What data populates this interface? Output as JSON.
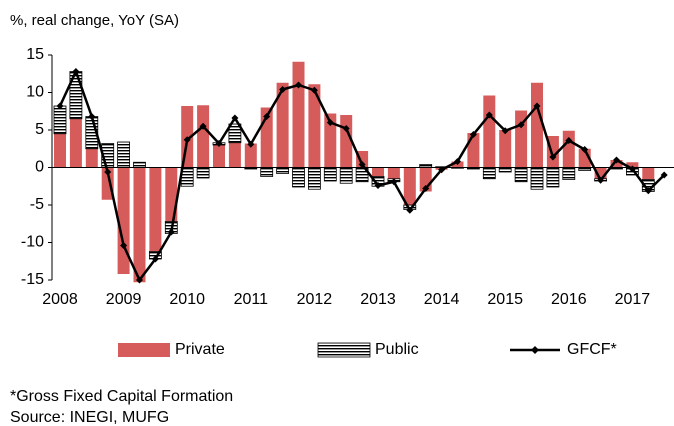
{
  "chart_data": {
    "type": "bar",
    "title": "%,  real change, YoY (SA)",
    "categories": [
      "2008",
      null,
      null,
      null,
      "2009",
      null,
      null,
      null,
      "2010",
      null,
      null,
      null,
      "2011",
      null,
      null,
      null,
      "2012",
      null,
      null,
      null,
      "2013",
      null,
      null,
      null,
      "2014",
      null,
      null,
      null,
      "2015",
      null,
      null,
      null,
      "2016",
      null,
      null,
      null,
      "2017",
      null,
      null
    ],
    "series": [
      {
        "name": "Private",
        "color": "#d65b5b",
        "values": [
          4.5,
          6.5,
          2.5,
          -4.3,
          -14.2,
          -15.3,
          -11.2,
          -7.2,
          8.2,
          8.3,
          3.0,
          3.3,
          3.2,
          8.0,
          11.3,
          14.1,
          11.1,
          7.2,
          7.0,
          2.2,
          -1.2,
          -1.5,
          -5.0,
          -3.2,
          -0.3,
          0.8,
          4.6,
          9.6,
          5.0,
          7.6,
          11.3,
          4.2,
          4.9,
          2.5,
          -1.5,
          1.0,
          0.7,
          -1.6,
          null
        ]
      },
      {
        "name": "Public",
        "color": "#000000",
        "values": [
          3.7,
          6.3,
          4.3,
          3.2,
          3.4,
          0.7,
          -1.0,
          -1.6,
          -2.5,
          -1.4,
          0.3,
          2.5,
          -0.2,
          -1.2,
          -0.8,
          -2.6,
          -2.9,
          -1.8,
          -2.1,
          -1.9,
          -1.3,
          -0.4,
          -0.6,
          0.4,
          0.1,
          -0.1,
          -0.2,
          -1.5,
          -0.6,
          -1.9,
          -2.9,
          -2.6,
          -1.6,
          -0.4,
          -0.3,
          -0.2,
          -1.0,
          -1.6,
          null
        ]
      },
      {
        "name": "GFCF*",
        "color": "#000000",
        "type": "line",
        "values": [
          8.2,
          12.8,
          6.8,
          -0.6,
          -10.4,
          -15.0,
          -12.2,
          -8.6,
          3.7,
          5.5,
          3.2,
          6.6,
          3.1,
          6.8,
          10.4,
          11.0,
          10.3,
          6.0,
          5.2,
          0.4,
          -2.4,
          -1.9,
          -5.7,
          -2.8,
          -0.3,
          0.8,
          4.4,
          7.0,
          4.9,
          5.7,
          8.2,
          1.4,
          3.6,
          2.4,
          -1.7,
          1.0,
          -0.2,
          -3.1,
          -1.0
        ]
      }
    ],
    "ylim": [
      -15,
      15
    ],
    "yticks": [
      15,
      10,
      5,
      0,
      -5,
      -10,
      -15
    ],
    "stacked": true,
    "legend": "bottom",
    "notes": [
      "*Gross Fixed Capital Formation",
      "Source: INEGI, MUFG"
    ]
  }
}
